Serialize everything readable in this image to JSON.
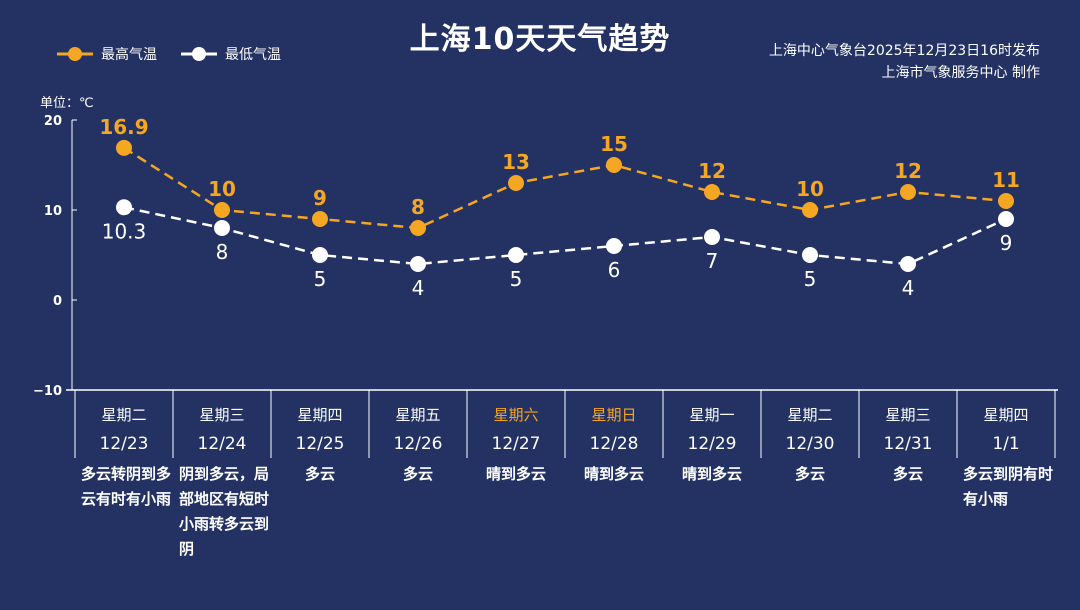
{
  "chart_data": {
    "type": "line",
    "title": "上海10天天气趋势",
    "ylabel": "单位：℃",
    "ylim": [
      -10,
      20
    ],
    "yticks": [
      "20",
      "10",
      "0",
      "−10"
    ],
    "yticks_values": [
      20,
      10,
      0,
      -10
    ],
    "categories": [
      "12/23",
      "12/24",
      "12/25",
      "12/26",
      "12/27",
      "12/28",
      "12/29",
      "12/30",
      "12/31",
      "1/1"
    ],
    "weekdays": [
      "星期二",
      "星期三",
      "星期四",
      "星期五",
      "星期六",
      "星期日",
      "星期一",
      "星期二",
      "星期三",
      "星期四"
    ],
    "weekend_flags": [
      false,
      false,
      false,
      false,
      true,
      true,
      false,
      false,
      false,
      false
    ],
    "weather": [
      "多云转阴到多云有时有小雨",
      "阴到多云，局部地区有短时小雨转多云到阴",
      "多云",
      "多云",
      "晴到多云",
      "晴到多云",
      "晴到多云",
      "多云",
      "多云",
      "多云到阴有时有小雨"
    ],
    "series": [
      {
        "name": "最高气温",
        "color": "#f5a623",
        "values": [
          16.9,
          10,
          9,
          8,
          13,
          15,
          12,
          10,
          12,
          11
        ],
        "labels": [
          "16.9",
          "10",
          "9",
          "8",
          "13",
          "15",
          "12",
          "10",
          "12",
          "11"
        ]
      },
      {
        "name": "最低气温",
        "color": "#ffffff",
        "values": [
          10.3,
          8,
          5,
          4,
          5,
          6,
          7,
          5,
          4,
          9
        ],
        "labels": [
          "10.3",
          "8",
          "5",
          "4",
          "5",
          "6",
          "7",
          "5",
          "4",
          "9"
        ]
      }
    ],
    "legend": "top-left",
    "grid": false
  },
  "source": {
    "line1": "上海中心气象台2025年12月23日16时发布",
    "line2": "上海市气象服务中心  制作"
  },
  "colors": {
    "background": "#233263",
    "accent": "#f5a623"
  }
}
